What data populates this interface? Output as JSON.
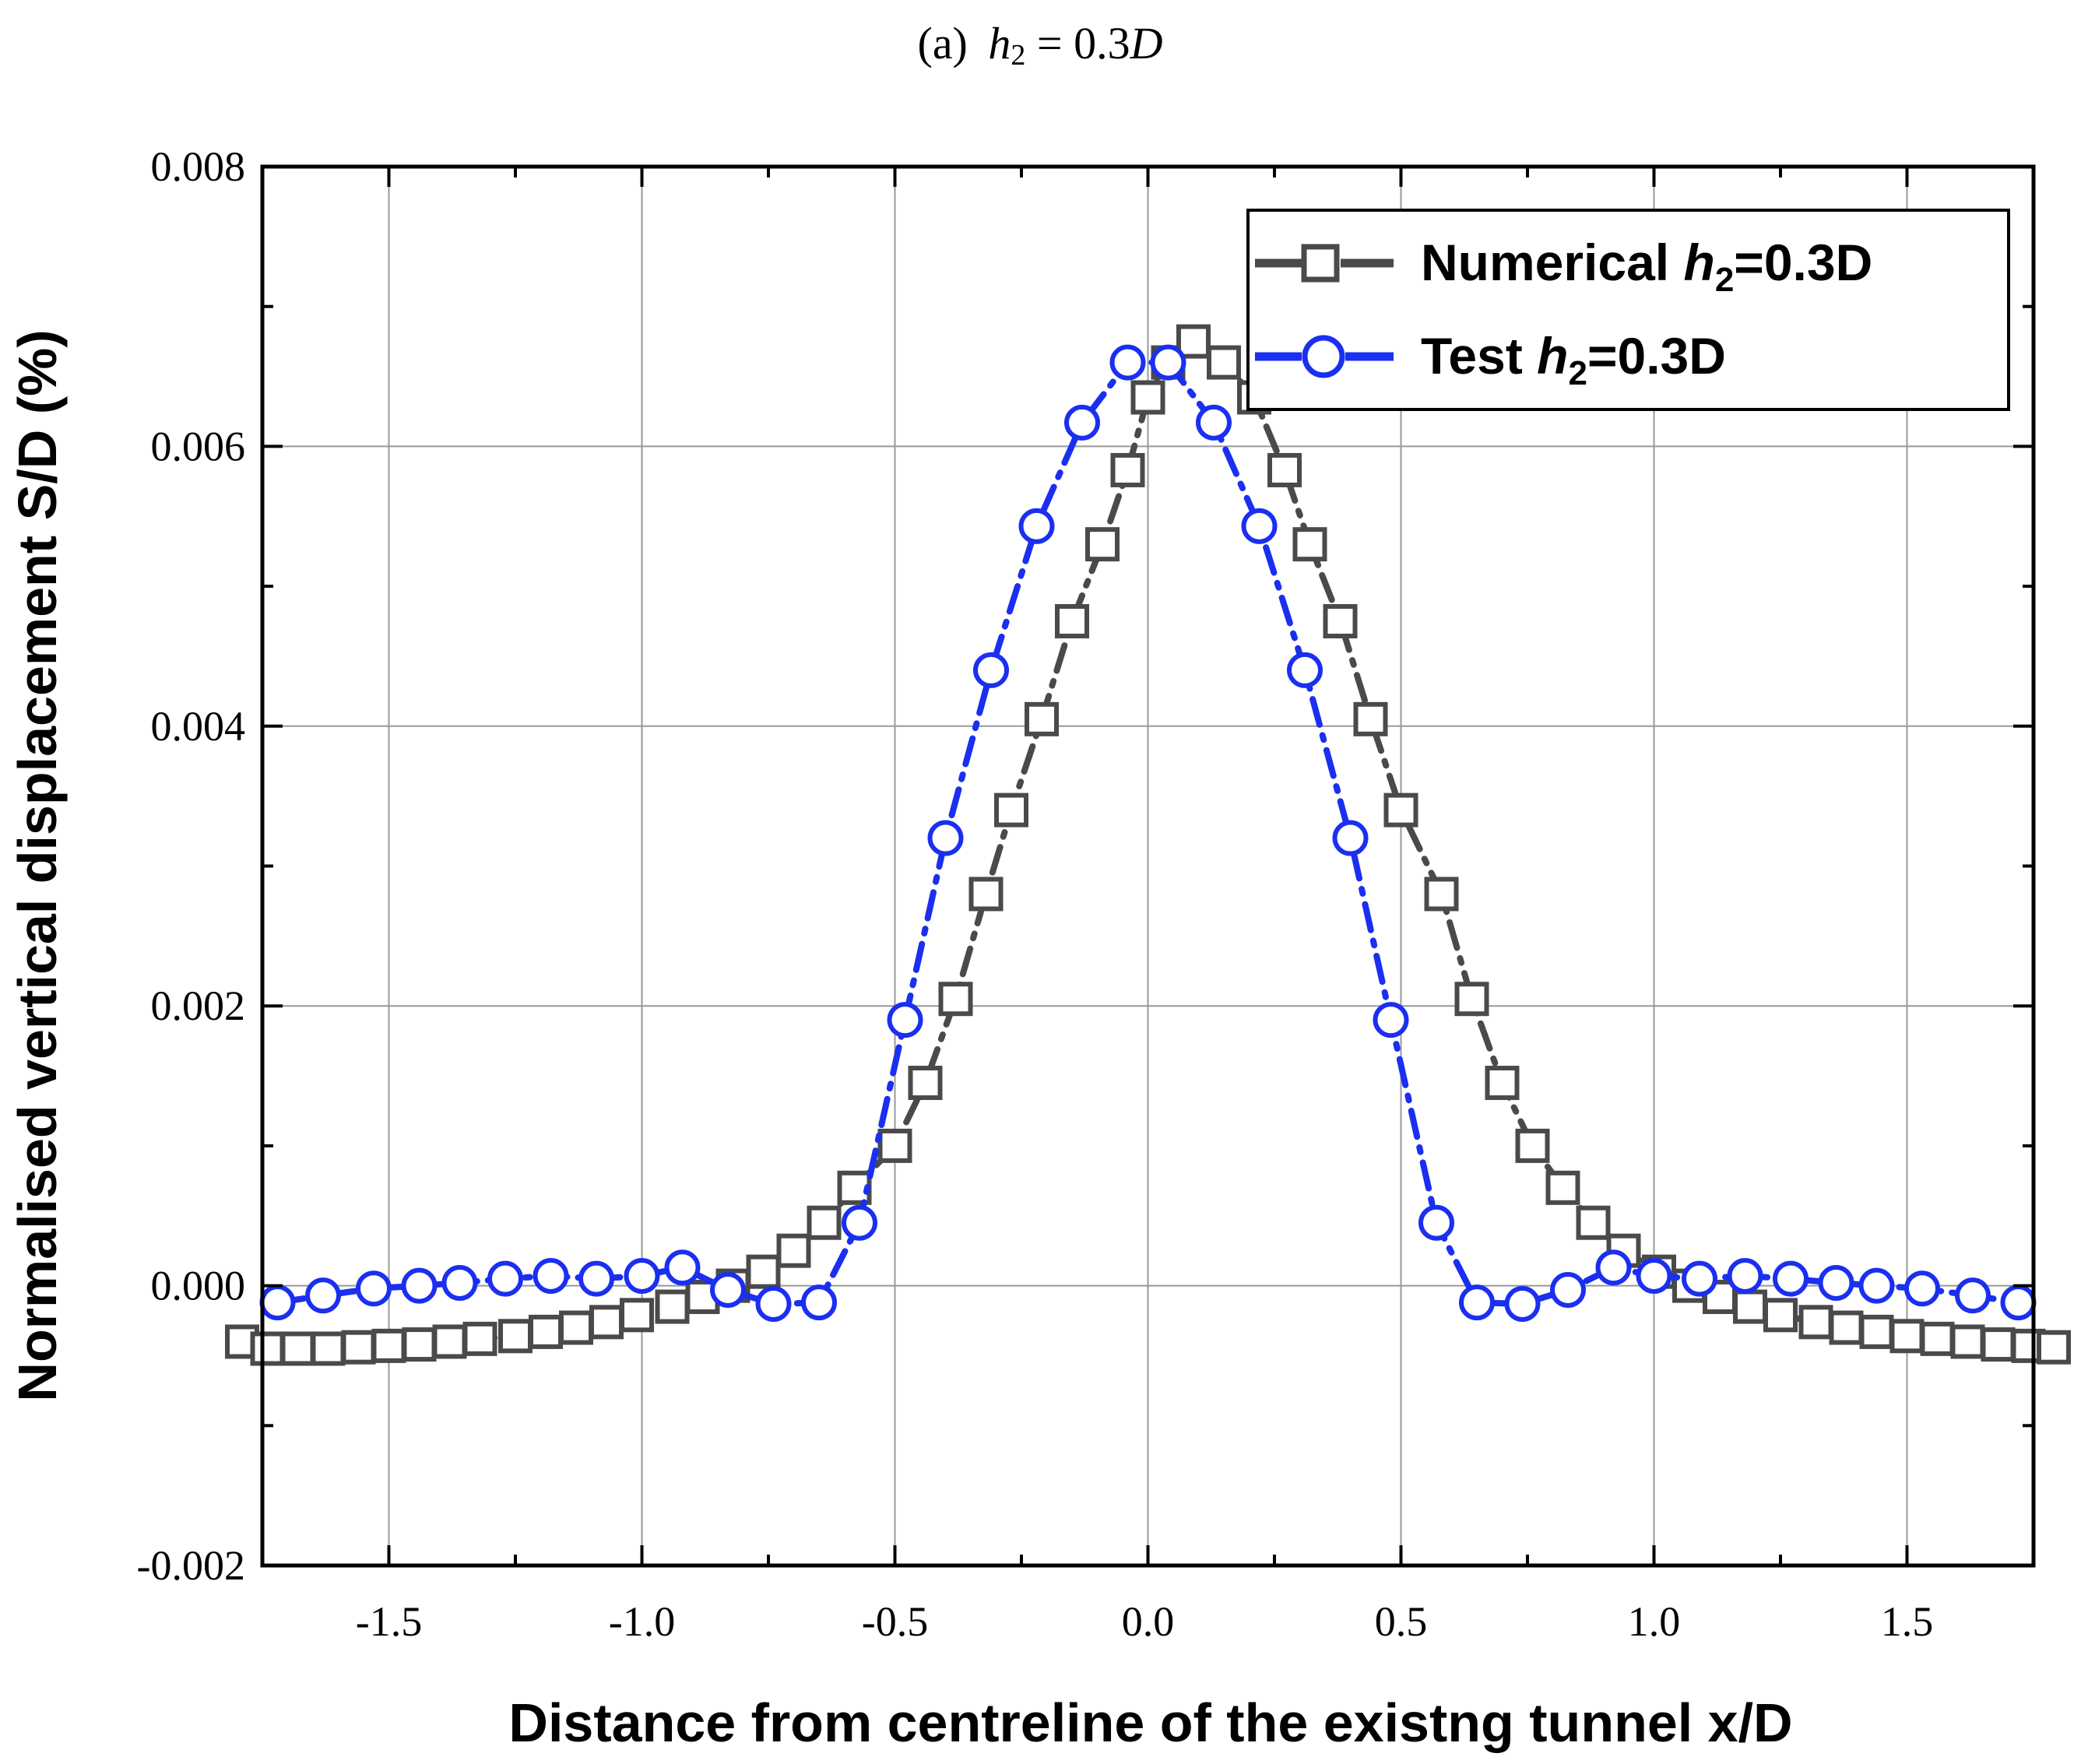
{
  "chart_data": {
    "type": "line",
    "title": {
      "prefix": "(a)",
      "var": "h",
      "sub": "2",
      "rest": " = 0.3",
      "unit": "D"
    },
    "xlabel": "Distance from centreline of the existng tunnel x/D",
    "ylabel": "Normalised vertical displacement S/D (%)",
    "xlim": [
      -1.75,
      1.75
    ],
    "ylim": [
      -0.002,
      0.008
    ],
    "xticks": [
      -1.5,
      -1.0,
      -0.5,
      0.0,
      0.5,
      1.0,
      1.5
    ],
    "xtick_labels": [
      "-1.5",
      "-1.0",
      "-0.5",
      "0.0",
      "0.5",
      "1.0",
      "1.5"
    ],
    "yticks": [
      -0.002,
      0.0,
      0.002,
      0.004,
      0.006,
      0.008
    ],
    "ytick_labels": [
      "-0.002",
      "0.000",
      "0.002",
      "0.004",
      "0.006",
      "0.008"
    ],
    "grid": true,
    "legend_position": "top-right",
    "series": [
      {
        "name": "Numerical",
        "legend_prefix": "Numerical ",
        "legend_var": "h",
        "legend_sub": "2",
        "legend_suffix": "=0.3D",
        "color": "#4a4a4a",
        "marker": "square",
        "line_style": "dash-dot",
        "x": [
          -1.79,
          -1.74,
          -1.68,
          -1.62,
          -1.56,
          -1.5,
          -1.44,
          -1.38,
          -1.32,
          -1.25,
          -1.19,
          -1.13,
          -1.07,
          -1.01,
          -0.94,
          -0.88,
          -0.82,
          -0.76,
          -0.7,
          -0.64,
          -0.58,
          -0.5,
          -0.44,
          -0.38,
          -0.32,
          -0.27,
          -0.21,
          -0.15,
          -0.09,
          -0.04,
          0.0,
          0.04,
          0.09,
          0.15,
          0.21,
          0.27,
          0.32,
          0.38,
          0.44,
          0.5,
          0.58,
          0.64,
          0.7,
          0.76,
          0.82,
          0.88,
          0.94,
          1.01,
          1.07,
          1.13,
          1.19,
          1.25,
          1.32,
          1.38,
          1.44,
          1.5,
          1.56,
          1.62,
          1.68,
          1.74,
          1.79
        ],
        "y": [
          -0.0004,
          -0.00045,
          -0.00045,
          -0.00045,
          -0.00044,
          -0.00043,
          -0.00042,
          -0.0004,
          -0.00038,
          -0.00036,
          -0.00033,
          -0.0003,
          -0.00026,
          -0.00021,
          -0.00015,
          -8e-05,
          0.0,
          0.0001,
          0.00025,
          0.00045,
          0.0007,
          0.001,
          0.00145,
          0.00205,
          0.0028,
          0.0034,
          0.00405,
          0.00475,
          0.0053,
          0.00583,
          0.00635,
          0.0066,
          0.00675,
          0.0066,
          0.00635,
          0.00583,
          0.0053,
          0.00475,
          0.00405,
          0.0034,
          0.0028,
          0.00205,
          0.00145,
          0.001,
          0.0007,
          0.00045,
          0.00025,
          0.0001,
          0.0,
          -8e-05,
          -0.00015,
          -0.00021,
          -0.00026,
          -0.0003,
          -0.00033,
          -0.00036,
          -0.00038,
          -0.0004,
          -0.00042,
          -0.00043,
          -0.00044
        ]
      },
      {
        "name": "Test",
        "legend_prefix": "Test ",
        "legend_var": "h",
        "legend_sub": "2",
        "legend_suffix": "=0.3D",
        "color": "#1a2ff0",
        "marker": "circle",
        "line_style": "dash-dot",
        "x": [
          -1.72,
          -1.63,
          -1.53,
          -1.44,
          -1.36,
          -1.27,
          -1.18,
          -1.09,
          -1.0,
          -0.92,
          -0.83,
          -0.74,
          -0.65,
          -0.57,
          -0.48,
          -0.4,
          -0.31,
          -0.22,
          -0.13,
          -0.04,
          0.04,
          0.13,
          0.22,
          0.31,
          0.4,
          0.48,
          0.57,
          0.65,
          0.74,
          0.83,
          0.92,
          1.0,
          1.09,
          1.18,
          1.27,
          1.36,
          1.44,
          1.53,
          1.63,
          1.72
        ],
        "y": [
          -0.00012,
          -7e-05,
          -2e-05,
          0.0,
          2e-05,
          5e-05,
          7e-05,
          5e-05,
          7e-05,
          0.00013,
          -3e-05,
          -0.00013,
          -0.00012,
          0.00045,
          0.0019,
          0.0032,
          0.0044,
          0.00543,
          0.00617,
          0.0066,
          0.0066,
          0.00617,
          0.00543,
          0.0044,
          0.0032,
          0.0019,
          0.00045,
          -0.00012,
          -0.00013,
          -3e-05,
          0.00013,
          7e-05,
          5e-05,
          7e-05,
          5e-05,
          2e-05,
          0.0,
          -2e-05,
          -7e-05,
          -0.00012
        ]
      }
    ]
  }
}
